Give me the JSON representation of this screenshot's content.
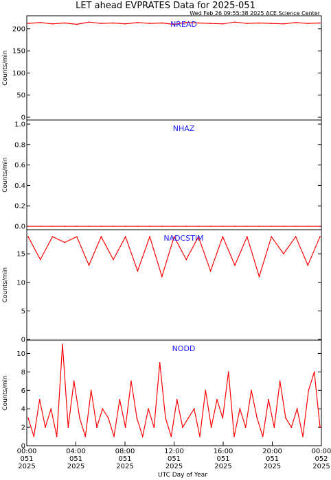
{
  "title": "LET ahead EVPRATES Data for 2025-051",
  "timestamp": "Wed Feb 26 09:55:38 2025 ACE Science Center",
  "colors": {
    "data": "#ff0000",
    "panel_label": "#1a1aff",
    "axes": "#000000"
  },
  "chart_data": [
    {
      "type": "line",
      "title": "NREAD",
      "ylabel": "Counts/min",
      "ylim": [
        0,
        220
      ],
      "yticks": [
        0,
        50,
        100,
        150,
        200
      ],
      "series": [
        {
          "values": [
            212,
            214,
            211,
            213,
            210,
            215,
            212,
            213,
            211,
            214,
            212,
            213,
            210,
            214,
            213,
            212,
            211,
            215,
            212,
            213,
            212,
            211,
            214,
            212,
            213
          ]
        }
      ]
    },
    {
      "type": "line",
      "title": "NHAZ",
      "ylabel": "Counts/min",
      "ylim": [
        0,
        1.0
      ],
      "yticks": [
        "0.0",
        "0.2",
        "0.4",
        "0.6",
        "0.8",
        "1.0"
      ],
      "series": [
        {
          "values": [
            0,
            0,
            0,
            0,
            0,
            0,
            0,
            0,
            0,
            0,
            0,
            0,
            0,
            0,
            0,
            0,
            0,
            0,
            0,
            0,
            0,
            0,
            0,
            0,
            0
          ]
        }
      ]
    },
    {
      "type": "line",
      "title": "NADCSTIM",
      "ylabel": "Counts/min",
      "ylim": [
        0,
        18.5
      ],
      "yticks": [
        0,
        5,
        10,
        15
      ],
      "series": [
        {
          "values": [
            18,
            14,
            18,
            17,
            18,
            13,
            18,
            14,
            18,
            12,
            18,
            11,
            18,
            14,
            18,
            12,
            18,
            13,
            18,
            11,
            18,
            15,
            18,
            13,
            18
          ]
        }
      ]
    },
    {
      "type": "line",
      "title": "NODD",
      "ylabel": "Counts/min",
      "ylim": [
        0,
        11
      ],
      "yticks": [
        0,
        2,
        4,
        6,
        8,
        10
      ],
      "series": [
        {
          "values": [
            3,
            1,
            5,
            2,
            4,
            1,
            11,
            2,
            7,
            3,
            1,
            6,
            2,
            4,
            3,
            1,
            5,
            2,
            7,
            3,
            1,
            4,
            2,
            9,
            3,
            1,
            5,
            2,
            3,
            4,
            1,
            6,
            2,
            5,
            3,
            8,
            1,
            4,
            2,
            6,
            3,
            1,
            5,
            2,
            7,
            3,
            2,
            4,
            1,
            6,
            8,
            2
          ]
        }
      ]
    }
  ],
  "x_axis": {
    "xlabel": "UTC Day of Year",
    "ticks": [
      {
        "time": "00:00",
        "day": "051",
        "year": "2025"
      },
      {
        "time": "04:00",
        "day": "051",
        "year": "2025"
      },
      {
        "time": "08:00",
        "day": "051",
        "year": "2025"
      },
      {
        "time": "12:00",
        "day": "051",
        "year": "2025"
      },
      {
        "time": "16:00",
        "day": "051",
        "year": "2025"
      },
      {
        "time": "20:00",
        "day": "051",
        "year": "2025"
      },
      {
        "time": "00:00",
        "day": "052",
        "year": "2025"
      }
    ]
  }
}
